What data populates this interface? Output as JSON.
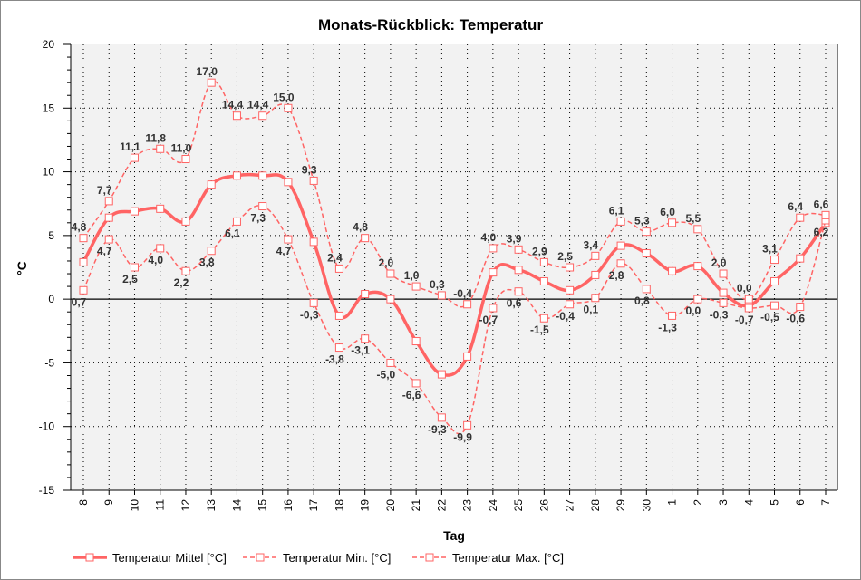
{
  "chart_data": {
    "type": "line",
    "title": "Monats-Rückblick: Temperatur",
    "xlabel": "Tag",
    "ylabel": "°C",
    "ylim": [
      -15,
      20
    ],
    "yticks": [
      -15,
      -10,
      -5,
      0,
      5,
      10,
      15,
      20
    ],
    "grid": true,
    "legend_position": "bottom",
    "categories": [
      "8",
      "9",
      "10",
      "11",
      "12",
      "13",
      "14",
      "15",
      "16",
      "17",
      "18",
      "19",
      "20",
      "21",
      "22",
      "23",
      "24",
      "25",
      "26",
      "27",
      "28",
      "29",
      "30",
      "1",
      "2",
      "3",
      "4",
      "5",
      "6",
      "7"
    ],
    "series": [
      {
        "name": "Temperatur Mittel [°C]",
        "style": "solid",
        "color": "#ff6464",
        "labels": false,
        "values": [
          2.9,
          6.4,
          6.9,
          7.1,
          6.1,
          9.0,
          9.7,
          9.7,
          9.2,
          4.5,
          -1.3,
          0.4,
          0.0,
          -3.3,
          -5.9,
          -4.5,
          2.1,
          2.3,
          1.4,
          0.7,
          1.9,
          4.2,
          3.6,
          2.2,
          2.6,
          0.5,
          -0.5,
          1.4,
          3.2,
          6.0
        ]
      },
      {
        "name": "Temperatur Min. [°C]",
        "style": "dashed",
        "color": "#ff6464",
        "labels": true,
        "values": [
          0.7,
          4.7,
          2.5,
          4.0,
          2.2,
          3.8,
          6.1,
          7.3,
          4.7,
          -0.3,
          -3.8,
          -3.1,
          -5.0,
          -6.6,
          -9.3,
          -9.9,
          -0.7,
          0.6,
          -1.5,
          -0.4,
          0.1,
          2.8,
          0.8,
          -1.3,
          0.0,
          -0.3,
          -0.7,
          -0.5,
          -0.6,
          6.2
        ]
      },
      {
        "name": "Temperatur Max. [°C]",
        "style": "dashed",
        "color": "#ff6464",
        "labels": true,
        "values": [
          4.8,
          7.7,
          11.1,
          11.8,
          11.0,
          17.0,
          14.4,
          14.4,
          15.0,
          9.3,
          2.4,
          4.8,
          2.0,
          1.0,
          0.3,
          -0.4,
          4.0,
          3.9,
          2.9,
          2.5,
          3.4,
          6.1,
          5.3,
          6.0,
          5.5,
          2.0,
          0.0,
          3.1,
          6.4,
          6.6
        ]
      }
    ]
  }
}
